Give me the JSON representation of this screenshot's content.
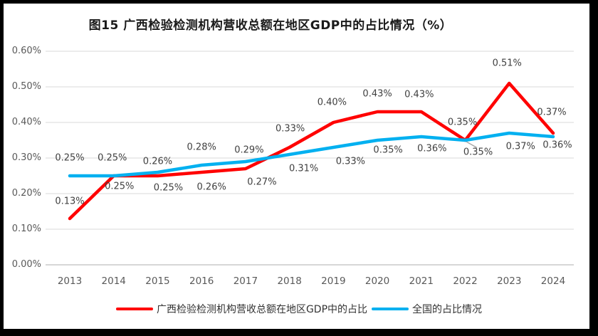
{
  "title": "图15 广西检验检测机构营收总额在地区GDP中的占比情况（%）",
  "chart_data": {
    "type": "line",
    "title": "图15 广西检验检测机构营收总额在地区GDP中的占比情况（%）",
    "categories": [
      "2013",
      "2014",
      "2015",
      "2016",
      "2017",
      "2018",
      "2019",
      "2020",
      "2021",
      "2022",
      "2023",
      "2024"
    ],
    "series": [
      {
        "name": "广西检验检测机构营收总额在地区GDP中的占比",
        "color": "#FF0000",
        "values": [
          0.13,
          0.25,
          0.25,
          0.26,
          0.27,
          0.33,
          0.4,
          0.43,
          0.43,
          0.35,
          0.51,
          0.37
        ],
        "labels": [
          "0.13%",
          "0.25%",
          "0.25%",
          "0.26%",
          "0.27%",
          "0.33%",
          "0.40%",
          "0.43%",
          "0.43%",
          "0.35%",
          "0.51%",
          "0.37%"
        ]
      },
      {
        "name": "全国的占比情况",
        "color": "#00B0F0",
        "values": [
          0.25,
          0.25,
          0.26,
          0.28,
          0.29,
          0.31,
          0.33,
          0.35,
          0.36,
          0.35,
          0.37,
          0.36
        ],
        "labels": [
          "0.25%",
          "0.25%",
          "0.26%",
          "0.28%",
          "0.29%",
          "0.31%",
          "0.33%",
          "0.35%",
          "0.36%",
          "0.35%",
          "0.37%",
          "0.36%"
        ]
      }
    ],
    "xlabel": "",
    "ylabel": "",
    "ylim": [
      0,
      0.6
    ],
    "ytick_labels": [
      "0.00%",
      "0.10%",
      "0.20%",
      "0.30%",
      "0.40%",
      "0.50%",
      "0.60%"
    ],
    "grid": true,
    "data_labels": true,
    "legend_position": "bottom",
    "annotation": {
      "note": "blue 2022 value 0.35% has a leader line to its label"
    }
  },
  "colors": {
    "gridline": "#D9D9D9",
    "axis_line": "#BFBFBF",
    "leader_line": "#A6A6A6",
    "tick_text": "#595959",
    "data_label_text": "#404040"
  }
}
